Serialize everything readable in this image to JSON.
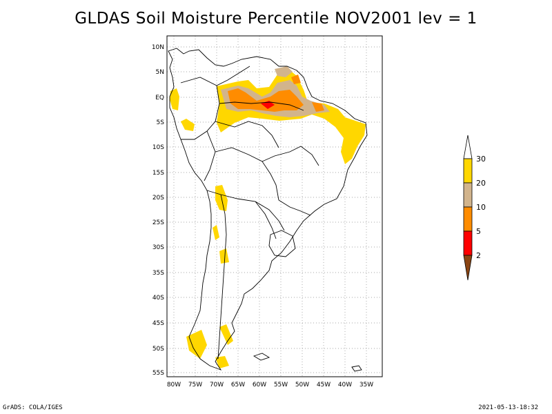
{
  "title": "GLDAS Soil Moisture Percentile NOV2001 lev = 1",
  "footer": {
    "left": "GrADS: COLA/IGES",
    "right": "2021-05-13-18:32"
  },
  "axes": {
    "lat_labels": [
      "10N",
      "5N",
      "EQ",
      "5S",
      "10S",
      "15S",
      "20S",
      "25S",
      "30S",
      "35S",
      "40S",
      "45S",
      "50S",
      "55S"
    ],
    "lon_labels": [
      "80W",
      "75W",
      "70W",
      "65W",
      "60W",
      "55W",
      "50W",
      "45W",
      "40W",
      "35W"
    ]
  },
  "legend": {
    "labels": [
      "30",
      "20",
      "10",
      "5",
      "2"
    ],
    "colors": {
      "gt30": "#ffffff",
      "20_30": "#ffd700",
      "10_20": "#d2b48c",
      "5_10": "#ff8c00",
      "2_5": "#ff0000",
      "lt2": "#8b4513"
    }
  }
}
